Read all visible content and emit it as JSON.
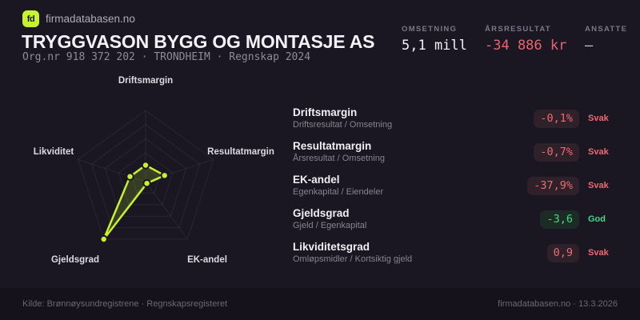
{
  "brand": {
    "logo": "fd",
    "site": "firmadatabasen.no"
  },
  "header": {
    "title": "TRYGGVASON BYGG OG MONTASJE AS",
    "subtitle": "Org.nr 918 372 202 · TRONDHEIM · Regnskap 2024"
  },
  "stats": [
    {
      "label": "OMSETNING",
      "value": "5,1 mill",
      "status": "normal"
    },
    {
      "label": "ÅRSRESULTAT",
      "value": "-34 886 kr",
      "status": "negative"
    },
    {
      "label": "ANSATTE",
      "value": "–",
      "status": "muted"
    }
  ],
  "metrics": [
    {
      "name": "Driftsmargin",
      "formula": "Driftsresultat / Omsetning",
      "value": "-0,1%",
      "rating": "Svak",
      "status": "bad"
    },
    {
      "name": "Resultatmargin",
      "formula": "Årsresultat / Omsetning",
      "value": "-0,7%",
      "rating": "Svak",
      "status": "bad"
    },
    {
      "name": "EK-andel",
      "formula": "Egenkapital / Eiendeler",
      "value": "-37,9%",
      "rating": "Svak",
      "status": "bad"
    },
    {
      "name": "Gjeldsgrad",
      "formula": "Gjeld / Egenkapital",
      "value": "-3,6",
      "rating": "God",
      "status": "good"
    },
    {
      "name": "Likviditetsgrad",
      "formula": "Omløpsmidler / Kortsiktig gjeld",
      "value": "0,9",
      "rating": "Svak",
      "status": "bad"
    }
  ],
  "chart_data": {
    "type": "radar",
    "axes": [
      "Driftsmargin",
      "Resultatmargin",
      "EK-andel",
      "Gjeldsgrad",
      "Likviditet"
    ],
    "values_normalized": [
      0.23,
      0.28,
      0.03,
      1.0,
      0.23
    ],
    "values_display": [
      "-0,1%",
      "-0,7%",
      "-37,9%",
      "-3,6",
      "0,9"
    ],
    "rings": 5,
    "range": [
      0,
      1
    ],
    "line_color": "#c6f22e",
    "fill_color": "rgba(198,242,46,0.17)",
    "grid_color": "rgba(255,255,255,0.07)",
    "point_stroke": "#1a1622",
    "legend": "none"
  },
  "footer": {
    "source": "Kilde: Brønnøysundregistrene · Regnskapsregisteret",
    "meta": "firmadatabasen.no · 13.3.2026"
  },
  "colors": {
    "background": "#1a1622",
    "footer_background": "#15121b",
    "accent_lime": "#c6f22e",
    "negative_red": "#e9656e",
    "positive_green": "#48d687"
  }
}
